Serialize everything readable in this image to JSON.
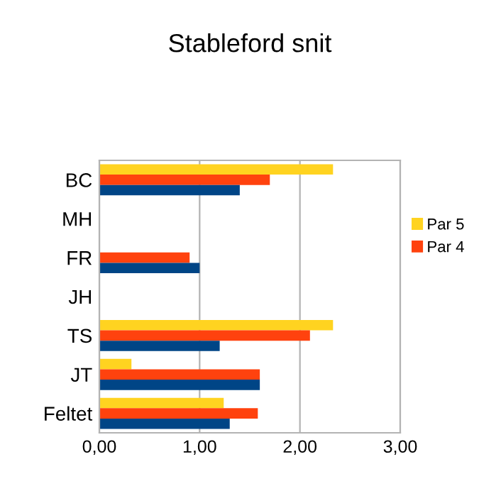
{
  "chart_data": {
    "type": "bar",
    "title": "Stableford snit",
    "orientation": "horizontal",
    "categories": [
      "BC",
      "MH",
      "FR",
      "JH",
      "TS",
      "JT",
      "Feltet"
    ],
    "series": [
      {
        "name": "Par 5",
        "color": "#ffd320",
        "values": [
          2.33,
          null,
          null,
          null,
          2.33,
          0.32,
          1.24
        ]
      },
      {
        "name": "Par 4",
        "color": "#ff420e",
        "values": [
          1.7,
          null,
          0.9,
          null,
          2.1,
          1.6,
          1.58
        ]
      },
      {
        "color": "#004586",
        "values": [
          1.4,
          null,
          1.0,
          null,
          1.2,
          1.6,
          1.3
        ]
      }
    ],
    "xlim": [
      0,
      3
    ],
    "xticks": [
      {
        "value": 0,
        "label": "0,00"
      },
      {
        "value": 1,
        "label": "1,00"
      },
      {
        "value": 2,
        "label": "2,00"
      },
      {
        "value": 3,
        "label": "3,00"
      }
    ],
    "grid": "x",
    "legend": "right"
  }
}
